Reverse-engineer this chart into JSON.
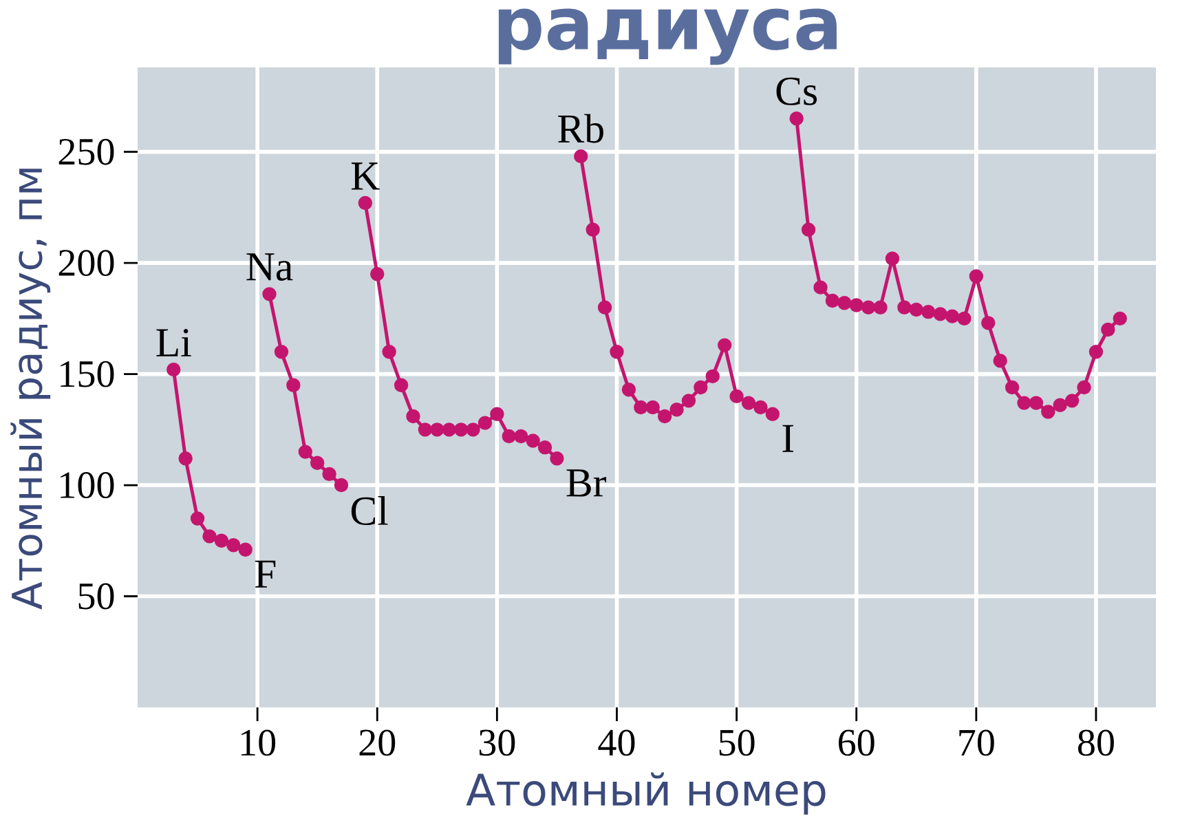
{
  "chart_data": {
    "type": "line",
    "title": "радиуса",
    "xlabel": "Атомный номер",
    "ylabel": "Атомный радиус, пм",
    "xlim": [
      0,
      85
    ],
    "ylim": [
      0,
      288
    ],
    "xticks": [
      10,
      20,
      30,
      40,
      50,
      60,
      70,
      80
    ],
    "yticks": [
      50,
      100,
      150,
      200,
      250
    ],
    "grid": true,
    "marker": "circle",
    "line_style": "solid",
    "series": [
      {
        "color": "#c4156e",
        "x": [
          3,
          4,
          5,
          6,
          7,
          8,
          9,
          10,
          11,
          12,
          13,
          14,
          15,
          16,
          17,
          18,
          19,
          20,
          21,
          22,
          23,
          24,
          25,
          26,
          27,
          28,
          29,
          30,
          31,
          32,
          33,
          34,
          35,
          36,
          37,
          38,
          39,
          40,
          41,
          42,
          43,
          44,
          45,
          46,
          47,
          48,
          49,
          50,
          51,
          52,
          53,
          54,
          55,
          56,
          57,
          58,
          59,
          60,
          61,
          62,
          63,
          64,
          65,
          66,
          67,
          68,
          69,
          70,
          71,
          72,
          73,
          74,
          75,
          76,
          77,
          78,
          79,
          80,
          81,
          82
        ],
        "values": [
          152,
          112,
          85,
          77,
          75,
          73,
          71,
          null,
          186,
          160,
          145,
          115,
          110,
          105,
          100,
          null,
          227,
          195,
          160,
          145,
          131,
          125,
          125,
          125,
          125,
          125,
          128,
          132,
          122,
          122,
          120,
          117,
          112,
          null,
          248,
          215,
          180,
          160,
          143,
          135,
          135,
          131,
          134,
          138,
          144,
          149,
          163,
          140,
          137,
          135,
          132,
          null,
          265,
          215,
          189,
          183,
          182,
          181,
          180,
          180,
          202,
          180,
          179,
          178,
          177,
          176,
          175,
          194,
          173,
          156,
          144,
          137,
          137,
          133,
          136,
          138,
          144,
          160,
          170,
          175
        ]
      }
    ],
    "annotations": [
      {
        "text": "Li",
        "x": 3,
        "y": 152
      },
      {
        "text": "F",
        "x": 9,
        "y": 71
      },
      {
        "text": "Na",
        "x": 11,
        "y": 186
      },
      {
        "text": "Cl",
        "x": 17,
        "y": 100
      },
      {
        "text": "K",
        "x": 19,
        "y": 227
      },
      {
        "text": "Br",
        "x": 35,
        "y": 112
      },
      {
        "text": "Rb",
        "x": 37,
        "y": 248
      },
      {
        "text": "I",
        "x": 53,
        "y": 132
      },
      {
        "text": "Cs",
        "x": 55,
        "y": 265
      }
    ]
  }
}
